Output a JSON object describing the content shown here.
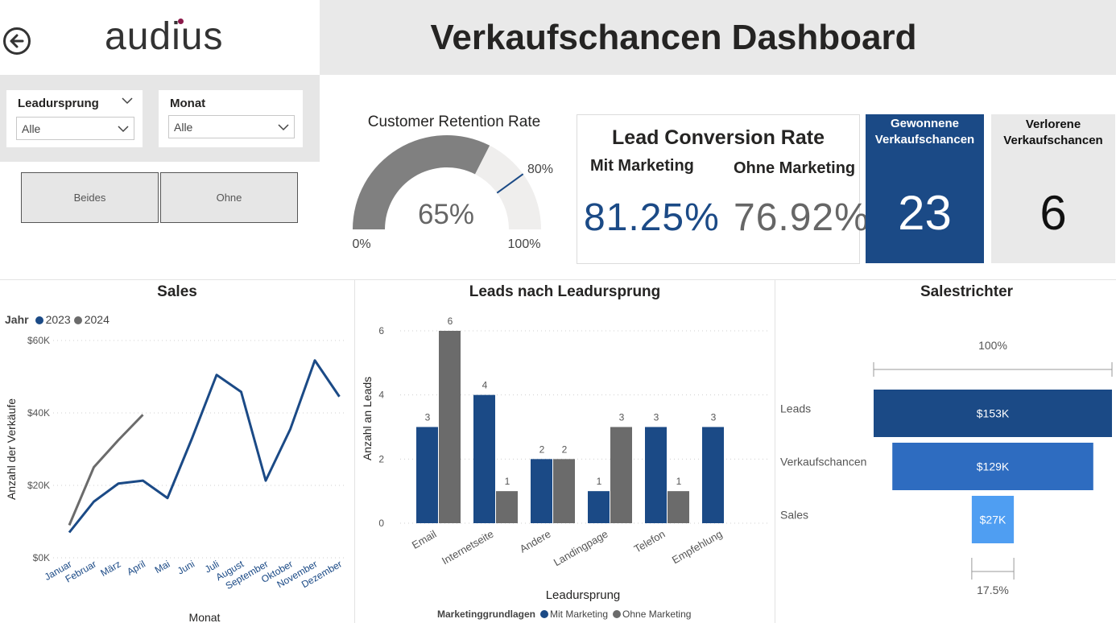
{
  "logo": {
    "text": "audius"
  },
  "dashboard_title": "Verkaufschancen Dashboard",
  "filters": {
    "leadursprung": {
      "label": "Leadursprung",
      "value": "Alle"
    },
    "monat": {
      "label": "Monat",
      "value": "Alle"
    }
  },
  "mode_buttons": {
    "beides": "Beides",
    "ohne": "Ohne"
  },
  "retention": {
    "title": "Customer Retention Rate",
    "value": 65,
    "value_label": "65%",
    "target": 80,
    "target_label": "80%",
    "min_label": "0%",
    "max_label": "100%"
  },
  "lead_conversion": {
    "title": "Lead Conversion Rate",
    "mit_label": "Mit Marketing",
    "ohne_label": "Ohne Marketing",
    "mit_value": "81.25%",
    "ohne_value": "76.92%"
  },
  "kpis": {
    "won": {
      "label": "Gewonnene Verkaufschancen",
      "value": "23"
    },
    "lost": {
      "label": "Verlorene Verkaufschancen",
      "value": "6"
    }
  },
  "colors": {
    "blue": "#1b4a86",
    "grey": "#6b6b6b",
    "funnel_mid": "#2e6cc0",
    "funnel_light": "#4f9ef2",
    "light_grey": "#e9e9e9"
  },
  "chart_data": [
    {
      "id": "sales",
      "type": "line",
      "title": "Sales",
      "legend_title": "Jahr",
      "xlabel": "Monat",
      "ylabel": "Anzahl der Verkäufe",
      "categories": [
        "Januar",
        "Februar",
        "März",
        "April",
        "Mai",
        "Juni",
        "Juli",
        "August",
        "September",
        "Oktober",
        "November",
        "Dezember"
      ],
      "ylim": [
        0,
        60000
      ],
      "yticks": [
        0,
        20000,
        40000,
        60000
      ],
      "ytick_labels": [
        "$0K",
        "$20K",
        "$40K",
        "$60K"
      ],
      "series": [
        {
          "name": "2023",
          "values": [
            7000,
            15500,
            20500,
            21300,
            16500,
            33000,
            50500,
            45800,
            21300,
            35500,
            54500,
            44500
          ]
        },
        {
          "name": "2024",
          "values": [
            9000,
            25000,
            32500,
            39500,
            null,
            null,
            null,
            null,
            null,
            null,
            null,
            null
          ]
        }
      ]
    },
    {
      "id": "leads",
      "type": "bar",
      "title": "Leads nach Leadursprung",
      "xlabel": "Leadursprung",
      "ylabel": "Anzahl an Leads",
      "legend_title": "Marketinggrundlagen",
      "categories": [
        "Email",
        "Internetseite",
        "Andere",
        "Landingpage",
        "Telefon",
        "Empfehlung"
      ],
      "ylim": [
        0,
        6
      ],
      "yticks": [
        0,
        2,
        4,
        6
      ],
      "series": [
        {
          "name": "Mit Marketing",
          "values": [
            3,
            4,
            2,
            1,
            3,
            3
          ]
        },
        {
          "name": "Ohne Marketing",
          "values": [
            6,
            1,
            2,
            3,
            1,
            null
          ]
        }
      ]
    },
    {
      "id": "funnel",
      "type": "funnel",
      "title": "Salestrichter",
      "stages": [
        "Leads",
        "Verkaufschancen",
        "Sales"
      ],
      "values": [
        153,
        129,
        27
      ],
      "value_labels": [
        "$153K",
        "$129K",
        "$27K"
      ],
      "top_label": "100%",
      "bottom_label": "17.5%"
    }
  ]
}
